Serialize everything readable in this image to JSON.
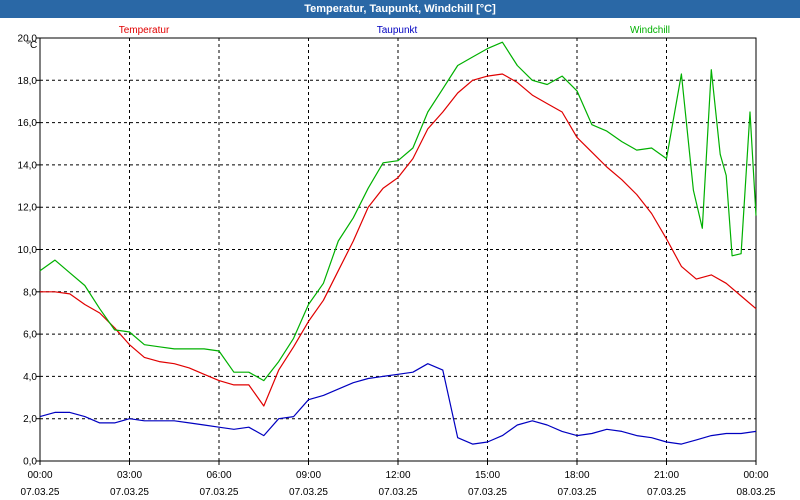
{
  "window": {
    "title": "Temperatur, Taupunkt, Windchill [°C]"
  },
  "chart_data": {
    "type": "line",
    "title": "Temperatur, Taupunkt, Windchill [°C]",
    "ylabel": "°C",
    "ylim": [
      0,
      20
    ],
    "xlim": [
      0,
      24
    ],
    "grid": true,
    "legend_position": "top",
    "y_ticks": [
      "0,0",
      "2,0",
      "4,0",
      "6,0",
      "8,0",
      "10,0",
      "12,0",
      "14,0",
      "16,0",
      "18,0",
      "20,0"
    ],
    "x_ticks": [
      {
        "time": "00:00",
        "date": "07.03.25"
      },
      {
        "time": "03:00",
        "date": "07.03.25"
      },
      {
        "time": "06:00",
        "date": "07.03.25"
      },
      {
        "time": "09:00",
        "date": "07.03.25"
      },
      {
        "time": "12:00",
        "date": "07.03.25"
      },
      {
        "time": "15:00",
        "date": "07.03.25"
      },
      {
        "time": "18:00",
        "date": "07.03.25"
      },
      {
        "time": "21:00",
        "date": "07.03.25"
      },
      {
        "time": "00:00",
        "date": "08.03.25"
      }
    ],
    "series": [
      {
        "name": "Temperatur",
        "color": "#e00000",
        "x": [
          0,
          0.5,
          1,
          1.5,
          2,
          2.5,
          3,
          3.5,
          4,
          4.5,
          5,
          5.5,
          6,
          6.5,
          7,
          7.5,
          8,
          8.5,
          9,
          9.5,
          10,
          10.5,
          11,
          11.5,
          12,
          12.5,
          13,
          13.5,
          14,
          14.5,
          15,
          15.5,
          16,
          16.5,
          17,
          17.5,
          18,
          18.5,
          19,
          19.5,
          20,
          20.5,
          21,
          21.5,
          22,
          22.5,
          23,
          23.5,
          24
        ],
        "values": [
          8.0,
          8.0,
          7.9,
          7.4,
          7.0,
          6.3,
          5.5,
          4.9,
          4.7,
          4.6,
          4.4,
          4.1,
          3.8,
          3.6,
          3.6,
          2.6,
          4.3,
          5.4,
          6.6,
          7.6,
          9.0,
          10.4,
          12.0,
          12.9,
          13.4,
          14.3,
          15.7,
          16.5,
          17.4,
          18.0,
          18.2,
          18.3,
          17.9,
          17.3,
          16.9,
          16.5,
          15.3,
          14.6,
          13.9,
          13.3,
          12.6,
          11.7,
          10.5,
          9.2,
          8.6,
          8.8,
          8.4,
          7.8,
          7.2
        ]
      },
      {
        "name": "Taupunkt",
        "color": "#0000c0",
        "x": [
          0,
          0.5,
          1,
          1.5,
          2,
          2.5,
          3,
          3.5,
          4,
          4.5,
          5,
          5.5,
          6,
          6.5,
          7,
          7.5,
          8,
          8.5,
          9,
          9.5,
          10,
          10.5,
          11,
          11.5,
          12,
          12.5,
          13,
          13.5,
          14,
          14.5,
          15,
          15.5,
          16,
          16.5,
          17,
          17.5,
          18,
          18.5,
          19,
          19.5,
          20,
          20.5,
          21,
          21.5,
          22,
          22.5,
          23,
          23.5,
          24
        ],
        "values": [
          2.1,
          2.3,
          2.3,
          2.1,
          1.8,
          1.8,
          2.0,
          1.9,
          1.9,
          1.9,
          1.8,
          1.7,
          1.6,
          1.5,
          1.6,
          1.2,
          2.0,
          2.1,
          2.9,
          3.1,
          3.4,
          3.7,
          3.9,
          4.0,
          4.1,
          4.2,
          4.6,
          4.3,
          1.1,
          0.8,
          0.9,
          1.2,
          1.7,
          1.9,
          1.7,
          1.4,
          1.2,
          1.3,
          1.5,
          1.4,
          1.2,
          1.1,
          0.9,
          0.8,
          1.0,
          1.2,
          1.3,
          1.3,
          1.4
        ]
      },
      {
        "name": "Windchill",
        "color": "#00b000",
        "x": [
          0,
          0.5,
          1,
          1.5,
          2,
          2.5,
          3,
          3.5,
          4,
          4.5,
          5,
          5.5,
          6,
          6.5,
          7,
          7.5,
          8,
          8.5,
          9,
          9.5,
          10,
          10.5,
          11,
          11.5,
          12,
          12.5,
          13,
          13.5,
          14,
          14.5,
          15,
          15.5,
          16,
          16.5,
          17,
          17.5,
          18,
          18.5,
          19,
          19.5,
          20,
          20.5,
          21,
          21.5,
          21.9,
          22.2,
          22.5,
          22.8,
          23,
          23.2,
          23.5,
          23.8,
          24
        ],
        "values": [
          9.0,
          9.5,
          8.9,
          8.3,
          7.2,
          6.2,
          6.1,
          5.5,
          5.4,
          5.3,
          5.3,
          5.3,
          5.2,
          4.2,
          4.2,
          3.8,
          4.7,
          5.8,
          7.4,
          8.4,
          10.4,
          11.5,
          12.9,
          14.1,
          14.2,
          14.8,
          16.5,
          17.6,
          18.7,
          19.1,
          19.5,
          19.8,
          18.7,
          18.0,
          17.8,
          18.2,
          17.5,
          15.9,
          15.6,
          15.1,
          14.7,
          14.8,
          14.3,
          18.3,
          12.8,
          11.0,
          18.5,
          14.5,
          13.5,
          9.7,
          9.8,
          16.5,
          11.6
        ]
      }
    ]
  }
}
